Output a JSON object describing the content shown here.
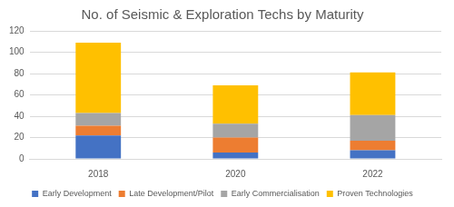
{
  "chart_data": {
    "type": "bar",
    "title": "No. of Seismic & Exploration Techs by Maturity",
    "categories": [
      "2018",
      "2020",
      "2022"
    ],
    "series": [
      {
        "name": "Early Development",
        "color": "#4472c4",
        "values": [
          22,
          6,
          8
        ]
      },
      {
        "name": "Late Development/Pilot",
        "color": "#ed7d31",
        "values": [
          9,
          14,
          9
        ]
      },
      {
        "name": "Early Commercialisation",
        "color": "#a5a5a5",
        "values": [
          12,
          13,
          24
        ]
      },
      {
        "name": "Proven Technologies",
        "color": "#ffc000",
        "values": [
          66,
          36,
          40
        ]
      }
    ],
    "stacked": true,
    "ylim": [
      0,
      120
    ],
    "yticks": [
      0,
      20,
      40,
      60,
      80,
      100,
      120
    ],
    "grid": true,
    "legend": "bottom"
  }
}
